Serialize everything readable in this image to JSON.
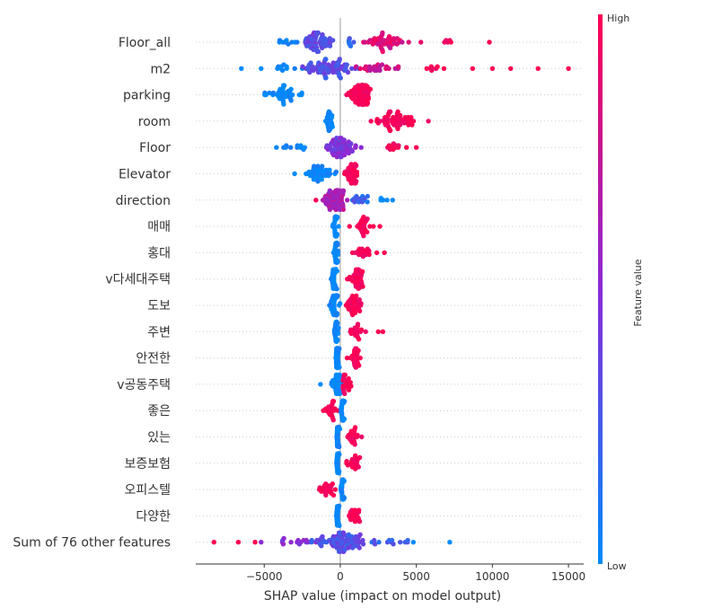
{
  "chart_data": {
    "type": "scatter",
    "subtype": "shap-beeswarm",
    "title": "",
    "xlabel": "SHAP value (impact on model output)",
    "ylabel": "",
    "xlim": [
      -9500,
      16000
    ],
    "xticks": [
      -5000,
      0,
      5000,
      10000,
      15000
    ],
    "xtick_labels": [
      "−5000",
      "0",
      "5000",
      "10000",
      "15000"
    ],
    "colorbar": {
      "label": "Feature value",
      "high_label": "High",
      "low_label": "Low",
      "high_color": "#ff0052",
      "mid_color": "#8a2bd6",
      "low_color": "#008bfb"
    },
    "grid": false,
    "features": [
      {
        "name": "Floor_all",
        "clusters": [
          {
            "center": -1500,
            "spread": 900,
            "count": 55,
            "color": 0.35
          },
          {
            "center": -3500,
            "spread": 700,
            "count": 8,
            "color": 0.05
          },
          {
            "center": 600,
            "spread": 250,
            "count": 6,
            "color": 0.2
          },
          {
            "center": 2800,
            "spread": 1300,
            "count": 45,
            "color": 0.85
          },
          {
            "center": 7000,
            "spread": 500,
            "count": 5,
            "color": 0.95
          }
        ],
        "outliers": [
          [
            9800,
            1.0
          ],
          [
            5300,
            0.9
          ],
          [
            -4000,
            0.0
          ]
        ]
      },
      {
        "name": "m2",
        "clusters": [
          {
            "center": -700,
            "spread": 1500,
            "count": 75,
            "color": 0.3
          },
          {
            "center": -3500,
            "spread": 1000,
            "count": 10,
            "color": 0.05
          },
          {
            "center": 2500,
            "spread": 1500,
            "count": 25,
            "color": 0.8
          },
          {
            "center": 6000,
            "spread": 1000,
            "count": 8,
            "color": 0.95
          }
        ],
        "outliers": [
          [
            15000,
            1.0
          ],
          [
            13000,
            1.0
          ],
          [
            11200,
            1.0
          ],
          [
            10000,
            1.0
          ],
          [
            8700,
            1.0
          ],
          [
            -6500,
            0.0
          ],
          [
            -5200,
            0.0
          ]
        ]
      },
      {
        "name": "parking",
        "clusters": [
          {
            "center": -3700,
            "spread": 1100,
            "count": 40,
            "color": 0.0
          },
          {
            "center": 1300,
            "spread": 650,
            "count": 90,
            "color": 1.0
          }
        ],
        "outliers": []
      },
      {
        "name": "room",
        "clusters": [
          {
            "center": -700,
            "spread": 250,
            "count": 25,
            "color": 0.0
          },
          {
            "center": 3700,
            "spread": 1300,
            "count": 60,
            "color": 1.0
          }
        ],
        "outliers": []
      },
      {
        "name": "Floor",
        "clusters": [
          {
            "center": 0,
            "spread": 900,
            "count": 60,
            "color": 0.45
          },
          {
            "center": -3000,
            "spread": 1000,
            "count": 10,
            "color": 0.05
          },
          {
            "center": 3500,
            "spread": 800,
            "count": 12,
            "color": 1.0
          }
        ],
        "outliers": [
          [
            -4200,
            0.0
          ],
          [
            5000,
            1.0
          ]
        ]
      },
      {
        "name": "Elevator",
        "clusters": [
          {
            "center": -1500,
            "spread": 1000,
            "count": 40,
            "color": 0.0
          },
          {
            "center": 700,
            "spread": 450,
            "count": 45,
            "color": 1.0
          }
        ],
        "outliers": [
          [
            -3000,
            0.0
          ]
        ]
      },
      {
        "name": "direction",
        "clusters": [
          {
            "center": -300,
            "spread": 800,
            "count": 70,
            "color": 0.65
          },
          {
            "center": 1500,
            "spread": 700,
            "count": 15,
            "color": 0.2
          },
          {
            "center": 3000,
            "spread": 400,
            "count": 5,
            "color": 0.0
          }
        ],
        "outliers": [
          [
            -1600,
            1.0
          ]
        ]
      },
      {
        "name": "매매",
        "clusters": [
          {
            "center": -300,
            "spread": 150,
            "count": 35,
            "color": 0.0
          },
          {
            "center": 1500,
            "spread": 700,
            "count": 25,
            "color": 1.0
          }
        ],
        "outliers": [
          [
            2600,
            1.0
          ]
        ]
      },
      {
        "name": "홍대",
        "clusters": [
          {
            "center": -250,
            "spread": 150,
            "count": 35,
            "color": 0.0
          },
          {
            "center": 1400,
            "spread": 600,
            "count": 18,
            "color": 1.0
          }
        ],
        "outliers": [
          [
            2400,
            1.0
          ],
          [
            2900,
            1.0
          ]
        ]
      },
      {
        "name": "v다세대주택",
        "clusters": [
          {
            "center": -400,
            "spread": 200,
            "count": 40,
            "color": 0.0
          },
          {
            "center": 1100,
            "spread": 450,
            "count": 40,
            "color": 1.0
          }
        ],
        "outliers": []
      },
      {
        "name": "도보",
        "clusters": [
          {
            "center": -400,
            "spread": 300,
            "count": 40,
            "color": 0.0
          },
          {
            "center": 800,
            "spread": 500,
            "count": 35,
            "color": 1.0
          }
        ],
        "outliers": []
      },
      {
        "name": "주변",
        "clusters": [
          {
            "center": -250,
            "spread": 150,
            "count": 35,
            "color": 0.0
          },
          {
            "center": 1000,
            "spread": 500,
            "count": 20,
            "color": 1.0
          }
        ],
        "outliers": [
          [
            2500,
            1.0
          ],
          [
            2800,
            1.0
          ]
        ]
      },
      {
        "name": "안전한",
        "clusters": [
          {
            "center": -200,
            "spread": 150,
            "count": 35,
            "color": 0.0
          },
          {
            "center": 900,
            "spread": 400,
            "count": 25,
            "color": 1.0
          }
        ],
        "outliers": []
      },
      {
        "name": "v공동주택",
        "clusters": [
          {
            "center": -200,
            "spread": 300,
            "count": 40,
            "color": 0.0
          },
          {
            "center": 400,
            "spread": 300,
            "count": 20,
            "color": 1.0
          }
        ],
        "outliers": [
          [
            -1300,
            0.0
          ]
        ]
      },
      {
        "name": "좋은",
        "clusters": [
          {
            "center": 150,
            "spread": 100,
            "count": 35,
            "color": 0.0
          },
          {
            "center": -600,
            "spread": 450,
            "count": 22,
            "color": 1.0
          }
        ],
        "outliers": []
      },
      {
        "name": "있는",
        "clusters": [
          {
            "center": -150,
            "spread": 100,
            "count": 35,
            "color": 0.0
          },
          {
            "center": 800,
            "spread": 450,
            "count": 22,
            "color": 1.0
          }
        ],
        "outliers": []
      },
      {
        "name": "보증보험",
        "clusters": [
          {
            "center": -150,
            "spread": 100,
            "count": 35,
            "color": 0.0
          },
          {
            "center": 900,
            "spread": 500,
            "count": 22,
            "color": 1.0
          }
        ],
        "outliers": []
      },
      {
        "name": "오피스텔",
        "clusters": [
          {
            "center": 150,
            "spread": 100,
            "count": 35,
            "color": 0.0
          },
          {
            "center": -800,
            "spread": 450,
            "count": 22,
            "color": 1.0
          }
        ],
        "outliers": []
      },
      {
        "name": "다양한",
        "clusters": [
          {
            "center": -150,
            "spread": 100,
            "count": 35,
            "color": 0.0
          },
          {
            "center": 900,
            "spread": 500,
            "count": 20,
            "color": 1.0
          }
        ],
        "outliers": []
      },
      {
        "name": "Sum of 76 other features",
        "clusters": [
          {
            "center": 0,
            "spread": 1500,
            "count": 90,
            "color": 0.3
          },
          {
            "center": -3000,
            "spread": 1300,
            "count": 15,
            "color": 0.45
          },
          {
            "center": 3000,
            "spread": 1300,
            "count": 12,
            "color": 0.2
          }
        ],
        "outliers": [
          [
            -8300,
            1.0
          ],
          [
            -6700,
            1.0
          ],
          [
            -5600,
            1.0
          ],
          [
            -5200,
            0.5
          ],
          [
            7200,
            0.0
          ],
          [
            4800,
            0.0
          ]
        ]
      }
    ]
  }
}
